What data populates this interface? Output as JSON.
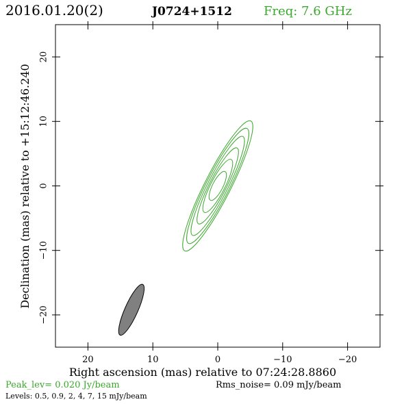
{
  "header": {
    "date": "2016.01.20(2)",
    "source": "J0724+1512",
    "freq": "Freq: 7.6 GHz"
  },
  "footer": {
    "peak": "Peak_lev=  0.020 Jy/beam",
    "rms": "Rms_noise= 0.09 mJy/beam",
    "levels": "Levels: 0.5, 0.9,   2,   4,   7,  15 mJy/beam"
  },
  "colors": {
    "contour": "#3aa82c",
    "beam_fill": "#808080",
    "text": "#000000"
  },
  "chart_data": {
    "type": "contour",
    "xlabel": "Right ascension (mas) relative to 07:24:28.8860",
    "ylabel": "Declination (mas) relative to +15:12:46.240",
    "xlim": [
      25,
      -25
    ],
    "ylim": [
      -25,
      25
    ],
    "x_ticks": [
      20,
      10,
      0,
      -10,
      -20
    ],
    "y_ticks": [
      20,
      10,
      0,
      -10,
      -20
    ],
    "x_tick_labels": [
      "20",
      "10",
      "0",
      "−10",
      "−20"
    ],
    "y_tick_labels": [
      "20",
      "10",
      "0",
      "−10",
      "−20"
    ],
    "contour_levels_mJy": [
      0.5,
      0.9,
      2,
      4,
      7,
      15
    ],
    "contours": [
      {
        "level": 0.5,
        "center": [
          0,
          0
        ],
        "semi_major": 11.3,
        "semi_minor": 2.0,
        "pa_deg": 27
      },
      {
        "level": 0.9,
        "center": [
          0,
          0
        ],
        "semi_major": 10.0,
        "semi_minor": 1.8,
        "pa_deg": 27
      },
      {
        "level": 2,
        "center": [
          0,
          0
        ],
        "semi_major": 8.6,
        "semi_minor": 1.55,
        "pa_deg": 27
      },
      {
        "level": 4,
        "center": [
          0,
          0
        ],
        "semi_major": 6.6,
        "semi_minor": 1.3,
        "pa_deg": 27
      },
      {
        "level": 7,
        "center": [
          0,
          0
        ],
        "semi_major": 4.6,
        "semi_minor": 1.1,
        "pa_deg": 27
      },
      {
        "level": 15,
        "center": [
          0,
          0
        ],
        "semi_major": 2.5,
        "semi_minor": 0.8,
        "pa_deg": 27
      }
    ],
    "beam": {
      "center": [
        13.3,
        -19.2
      ],
      "semi_major": 4.3,
      "semi_minor": 1.0,
      "pa_deg": 24
    }
  }
}
